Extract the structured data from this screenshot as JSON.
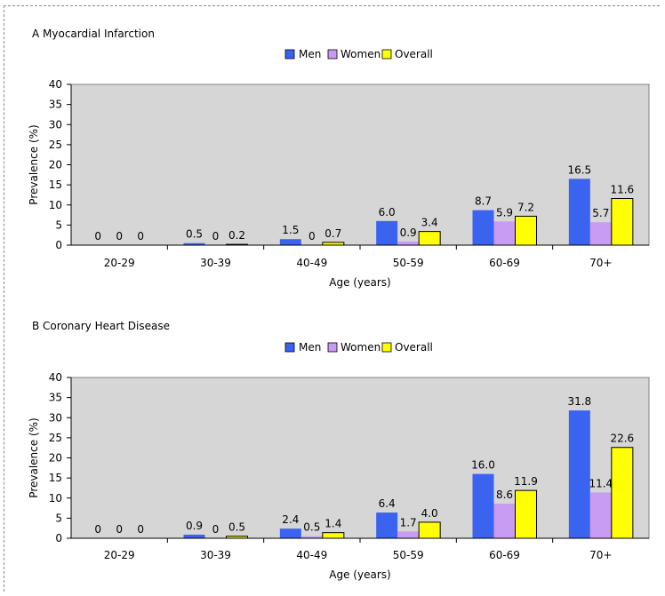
{
  "chart_data": [
    {
      "type": "bar",
      "title": "A Myocardial Infarction",
      "xlabel": "Age (years)",
      "ylabel": "Prevalence (%)",
      "ylim": [
        0,
        40
      ],
      "yticks": [
        "0",
        "5",
        "10",
        "15",
        "20",
        "25",
        "30",
        "35",
        "40"
      ],
      "categories": [
        "20-29",
        "30-39",
        "40-49",
        "50-59",
        "60-69",
        "70+"
      ],
      "legend": "top-center",
      "grid": false,
      "series": [
        {
          "name": "Men",
          "color": "#3a63f0",
          "values": [
            0,
            0.5,
            1.5,
            6.0,
            8.7,
            16.5
          ],
          "labels": [
            "0",
            "0.5",
            "1.5",
            "6.0",
            "8.7",
            "16.5"
          ]
        },
        {
          "name": "Women",
          "color": "#c79cf2",
          "values": [
            0,
            0,
            0,
            0.9,
            5.9,
            5.7
          ],
          "labels": [
            "0",
            "0",
            "0",
            "0.9",
            "5.9",
            "5.7"
          ]
        },
        {
          "name": "Overall",
          "color": "#ffff00",
          "values": [
            0,
            0.2,
            0.7,
            3.4,
            7.2,
            11.6
          ],
          "labels": [
            "0",
            "0.2",
            "0.7",
            "3.4",
            "7.2",
            "11.6"
          ]
        }
      ]
    },
    {
      "type": "bar",
      "title": "B Coronary Heart Disease",
      "xlabel": "Age (years)",
      "ylabel": "Prevalence (%)",
      "ylim": [
        0,
        40
      ],
      "yticks": [
        "0",
        "5",
        "10",
        "15",
        "20",
        "25",
        "30",
        "35",
        "40"
      ],
      "categories": [
        "20-29",
        "30-39",
        "40-49",
        "50-59",
        "60-69",
        "70+"
      ],
      "legend": "top-center",
      "grid": false,
      "series": [
        {
          "name": "Men",
          "color": "#3a63f0",
          "values": [
            0,
            0.9,
            2.4,
            6.4,
            16.0,
            31.8
          ],
          "labels": [
            "0",
            "0.9",
            "2.4",
            "6.4",
            "16.0",
            "31.8"
          ]
        },
        {
          "name": "Women",
          "color": "#c79cf2",
          "values": [
            0,
            0,
            0.5,
            1.7,
            8.6,
            11.4
          ],
          "labels": [
            "0",
            "0",
            "0.5",
            "1.7",
            "8.6",
            "11.4"
          ]
        },
        {
          "name": "Overall",
          "color": "#ffff00",
          "values": [
            0,
            0.5,
            1.4,
            4.0,
            11.9,
            22.6
          ],
          "labels": [
            "0",
            "0.5",
            "1.4",
            "4.0",
            "11.9",
            "22.6"
          ]
        }
      ]
    }
  ]
}
